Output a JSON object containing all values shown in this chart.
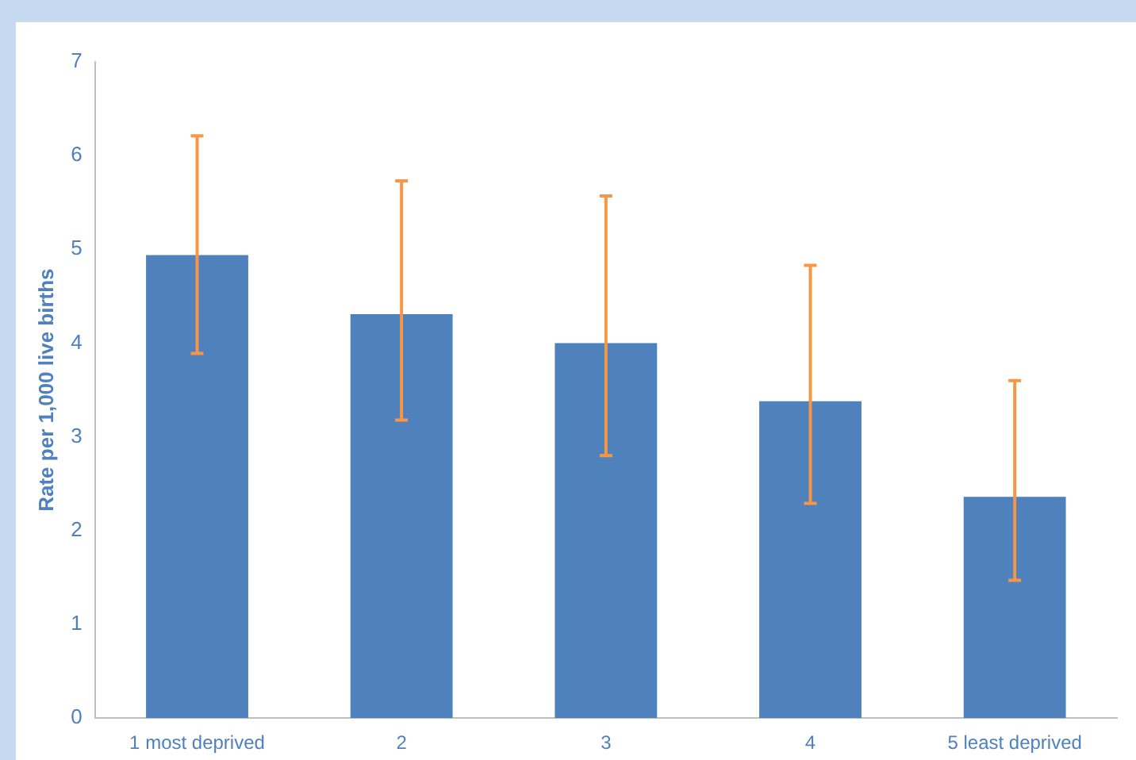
{
  "chart_data": {
    "type": "bar",
    "ylabel": "Rate per 1,000 live births",
    "categories": [
      "1 most deprived",
      "2",
      "3",
      "4",
      "5 least deprived"
    ],
    "values": [
      4.94,
      4.31,
      4.0,
      3.38,
      2.36
    ],
    "errors": [
      [
        3.89,
        6.21
      ],
      [
        3.18,
        5.73
      ],
      [
        2.8,
        5.57
      ],
      [
        2.29,
        4.83
      ],
      [
        1.47,
        3.6
      ]
    ],
    "color": "#4f81bd",
    "ylim": [
      0,
      7
    ],
    "yticks": [
      0,
      1,
      2,
      3,
      4,
      5,
      6,
      7
    ],
    "grid": false,
    "legend": false
  }
}
